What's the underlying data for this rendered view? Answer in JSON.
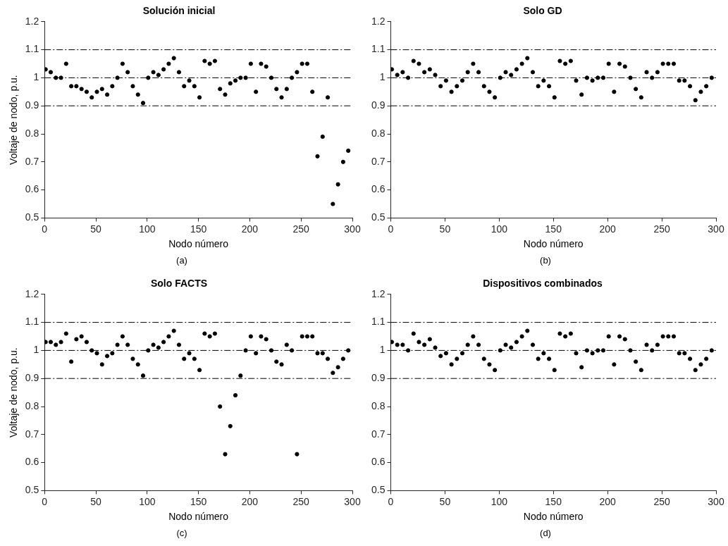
{
  "chart_data": [
    {
      "type": "scatter",
      "title": "Solución inicial",
      "xlabel": "Nodo número",
      "ylabel": "Voltaje de nodo, p.u.",
      "annotations": [
        "(a)"
      ],
      "marker": "circle",
      "legend": false,
      "grid": false,
      "xlim": [
        0,
        300
      ],
      "xticks": [
        0,
        50,
        100,
        150,
        200,
        250,
        300
      ],
      "ylim": [
        0.5,
        1.2
      ],
      "yticks": [
        0.5,
        0.6,
        0.7,
        0.8,
        0.9,
        1,
        1.1,
        1.2
      ],
      "ref_lines": [
        {
          "axis": "y",
          "value": 1.1,
          "line_style": "dashed",
          "color": "#000000"
        },
        {
          "axis": "y",
          "value": 1,
          "line_style": "dashed",
          "color": "#000000"
        },
        {
          "axis": "y",
          "value": 0.9,
          "line_style": "dashed",
          "color": "#000000"
        }
      ],
      "x": [
        1,
        6,
        11,
        16,
        21,
        26,
        31,
        36,
        41,
        46,
        51,
        56,
        61,
        66,
        71,
        76,
        81,
        86,
        91,
        96,
        101,
        106,
        111,
        116,
        121,
        126,
        131,
        136,
        141,
        146,
        151,
        156,
        161,
        166,
        171,
        176,
        181,
        186,
        191,
        196,
        201,
        206,
        211,
        216,
        221,
        226,
        231,
        236,
        241,
        246,
        251,
        256,
        261,
        266,
        271,
        276,
        281,
        286,
        291,
        296
      ],
      "series": [
        {
          "color": "#000000",
          "values": [
            1.03,
            1.02,
            1.0,
            1.0,
            1.05,
            0.97,
            0.97,
            0.96,
            0.95,
            0.93,
            0.95,
            0.96,
            0.94,
            0.97,
            1.0,
            1.05,
            1.02,
            0.97,
            0.94,
            0.91,
            1.0,
            1.02,
            1.01,
            1.03,
            1.05,
            1.07,
            1.02,
            0.97,
            0.99,
            0.97,
            0.93,
            1.06,
            1.05,
            1.06,
            0.96,
            0.94,
            0.98,
            0.99,
            1.0,
            1.0,
            1.05,
            0.95,
            1.05,
            1.04,
            1.0,
            0.96,
            0.93,
            0.96,
            1.0,
            1.02,
            1.05,
            1.05,
            0.95,
            0.72,
            0.79,
            0.93,
            0.55,
            0.62,
            0.7,
            0.74
          ]
        }
      ]
    },
    {
      "type": "scatter",
      "title": "Solo GD",
      "xlabel": "Nodo número",
      "annotations": [
        "(b)"
      ],
      "marker": "circle",
      "legend": false,
      "grid": false,
      "xlim": [
        0,
        300
      ],
      "xticks": [
        0,
        50,
        100,
        150,
        200,
        250,
        300
      ],
      "ylim": [
        0.5,
        1.2
      ],
      "yticks": [
        0.5,
        0.6,
        0.7,
        0.8,
        0.9,
        1,
        1.1,
        1.2
      ],
      "ref_lines": [
        {
          "axis": "y",
          "value": 1.1,
          "line_style": "dashed",
          "color": "#000000"
        },
        {
          "axis": "y",
          "value": 1,
          "line_style": "dashed",
          "color": "#000000"
        },
        {
          "axis": "y",
          "value": 0.9,
          "line_style": "dashed",
          "color": "#000000"
        }
      ],
      "x": [
        1,
        6,
        11,
        16,
        21,
        26,
        31,
        36,
        41,
        46,
        51,
        56,
        61,
        66,
        71,
        76,
        81,
        86,
        91,
        96,
        101,
        106,
        111,
        116,
        121,
        126,
        131,
        136,
        141,
        146,
        151,
        156,
        161,
        166,
        171,
        176,
        181,
        186,
        191,
        196,
        201,
        206,
        211,
        216,
        221,
        226,
        231,
        236,
        241,
        246,
        251,
        256,
        261,
        266,
        271,
        276,
        281,
        286,
        291,
        296
      ],
      "series": [
        {
          "color": "#000000",
          "values": [
            1.03,
            1.01,
            1.02,
            1.0,
            1.06,
            1.05,
            1.02,
            1.03,
            1.01,
            0.97,
            0.99,
            0.95,
            0.97,
            0.99,
            1.02,
            1.05,
            1.02,
            0.97,
            0.95,
            0.93,
            1.0,
            1.02,
            1.01,
            1.03,
            1.05,
            1.07,
            1.02,
            0.97,
            0.99,
            0.97,
            0.93,
            1.06,
            1.05,
            1.06,
            0.99,
            0.94,
            1.0,
            0.99,
            1.0,
            1.0,
            1.05,
            0.95,
            1.05,
            1.04,
            1.0,
            0.96,
            0.93,
            1.02,
            1.0,
            1.02,
            1.05,
            1.05,
            1.05,
            0.99,
            0.99,
            0.97,
            0.92,
            0.95,
            0.97,
            1.0
          ]
        }
      ]
    },
    {
      "type": "scatter",
      "title": "Solo FACTS",
      "xlabel": "Nodo número",
      "ylabel": "Voltaje de nodo, p.u.",
      "annotations": [
        "(c)"
      ],
      "marker": "circle",
      "legend": false,
      "grid": false,
      "xlim": [
        0,
        300
      ],
      "xticks": [
        0,
        50,
        100,
        150,
        200,
        250,
        300
      ],
      "ylim": [
        0.5,
        1.2
      ],
      "yticks": [
        0.5,
        0.6,
        0.7,
        0.8,
        0.9,
        1,
        1.1,
        1.2
      ],
      "ref_lines": [
        {
          "axis": "y",
          "value": 1.1,
          "line_style": "dashed",
          "color": "#000000"
        },
        {
          "axis": "y",
          "value": 1,
          "line_style": "dashed",
          "color": "#000000"
        },
        {
          "axis": "y",
          "value": 0.9,
          "line_style": "dashed",
          "color": "#000000"
        }
      ],
      "x": [
        1,
        6,
        11,
        16,
        21,
        26,
        31,
        36,
        41,
        46,
        51,
        56,
        61,
        66,
        71,
        76,
        81,
        86,
        91,
        96,
        101,
        106,
        111,
        116,
        121,
        126,
        131,
        136,
        141,
        146,
        151,
        156,
        161,
        166,
        171,
        176,
        181,
        186,
        191,
        196,
        201,
        206,
        211,
        216,
        221,
        226,
        231,
        236,
        241,
        246,
        251,
        256,
        261,
        266,
        271,
        276,
        281,
        286,
        291,
        296
      ],
      "series": [
        {
          "color": "#000000",
          "values": [
            1.03,
            1.03,
            1.02,
            1.03,
            1.06,
            0.96,
            1.04,
            1.05,
            1.03,
            1.0,
            0.99,
            0.95,
            0.98,
            0.99,
            1.02,
            1.05,
            1.02,
            0.97,
            0.95,
            0.91,
            1.0,
            1.02,
            1.01,
            1.03,
            1.05,
            1.07,
            1.02,
            0.97,
            0.99,
            0.97,
            0.93,
            1.06,
            1.05,
            1.06,
            0.8,
            0.63,
            0.73,
            0.84,
            0.91,
            1.0,
            1.05,
            0.99,
            1.05,
            1.04,
            1.0,
            0.96,
            0.95,
            1.02,
            1.0,
            0.63,
            1.05,
            1.05,
            1.05,
            0.99,
            0.99,
            0.97,
            0.92,
            0.94,
            0.97,
            1.0
          ]
        }
      ]
    },
    {
      "type": "scatter",
      "title": "Dispositivos combinados",
      "xlabel": "Nodo número",
      "annotations": [
        "(d)"
      ],
      "marker": "circle",
      "legend": false,
      "grid": false,
      "xlim": [
        0,
        300
      ],
      "xticks": [
        0,
        50,
        100,
        150,
        200,
        250,
        300
      ],
      "ylim": [
        0.5,
        1.2
      ],
      "yticks": [
        0.5,
        0.6,
        0.7,
        0.8,
        0.9,
        1,
        1.1,
        1.2
      ],
      "ref_lines": [
        {
          "axis": "y",
          "value": 1.1,
          "line_style": "dashed",
          "color": "#000000"
        },
        {
          "axis": "y",
          "value": 1,
          "line_style": "dashed",
          "color": "#000000"
        },
        {
          "axis": "y",
          "value": 0.9,
          "line_style": "dashed",
          "color": "#000000"
        }
      ],
      "x": [
        1,
        6,
        11,
        16,
        21,
        26,
        31,
        36,
        41,
        46,
        51,
        56,
        61,
        66,
        71,
        76,
        81,
        86,
        91,
        96,
        101,
        106,
        111,
        116,
        121,
        126,
        131,
        136,
        141,
        146,
        151,
        156,
        161,
        166,
        171,
        176,
        181,
        186,
        191,
        196,
        201,
        206,
        211,
        216,
        221,
        226,
        231,
        236,
        241,
        246,
        251,
        256,
        261,
        266,
        271,
        276,
        281,
        286,
        291,
        296
      ],
      "series": [
        {
          "color": "#000000",
          "values": [
            1.03,
            1.02,
            1.02,
            1.0,
            1.06,
            1.03,
            1.02,
            1.04,
            1.01,
            0.98,
            0.99,
            0.95,
            0.97,
            0.99,
            1.02,
            1.05,
            1.02,
            0.97,
            0.95,
            0.93,
            1.0,
            1.02,
            1.01,
            1.03,
            1.05,
            1.07,
            1.02,
            0.97,
            0.99,
            0.97,
            0.93,
            1.06,
            1.05,
            1.06,
            0.99,
            0.94,
            1.0,
            0.99,
            1.0,
            1.0,
            1.05,
            0.95,
            1.05,
            1.04,
            1.0,
            0.96,
            0.93,
            1.02,
            1.0,
            1.02,
            1.05,
            1.05,
            1.05,
            0.99,
            0.99,
            0.97,
            0.93,
            0.95,
            0.97,
            1.0
          ]
        }
      ]
    }
  ]
}
